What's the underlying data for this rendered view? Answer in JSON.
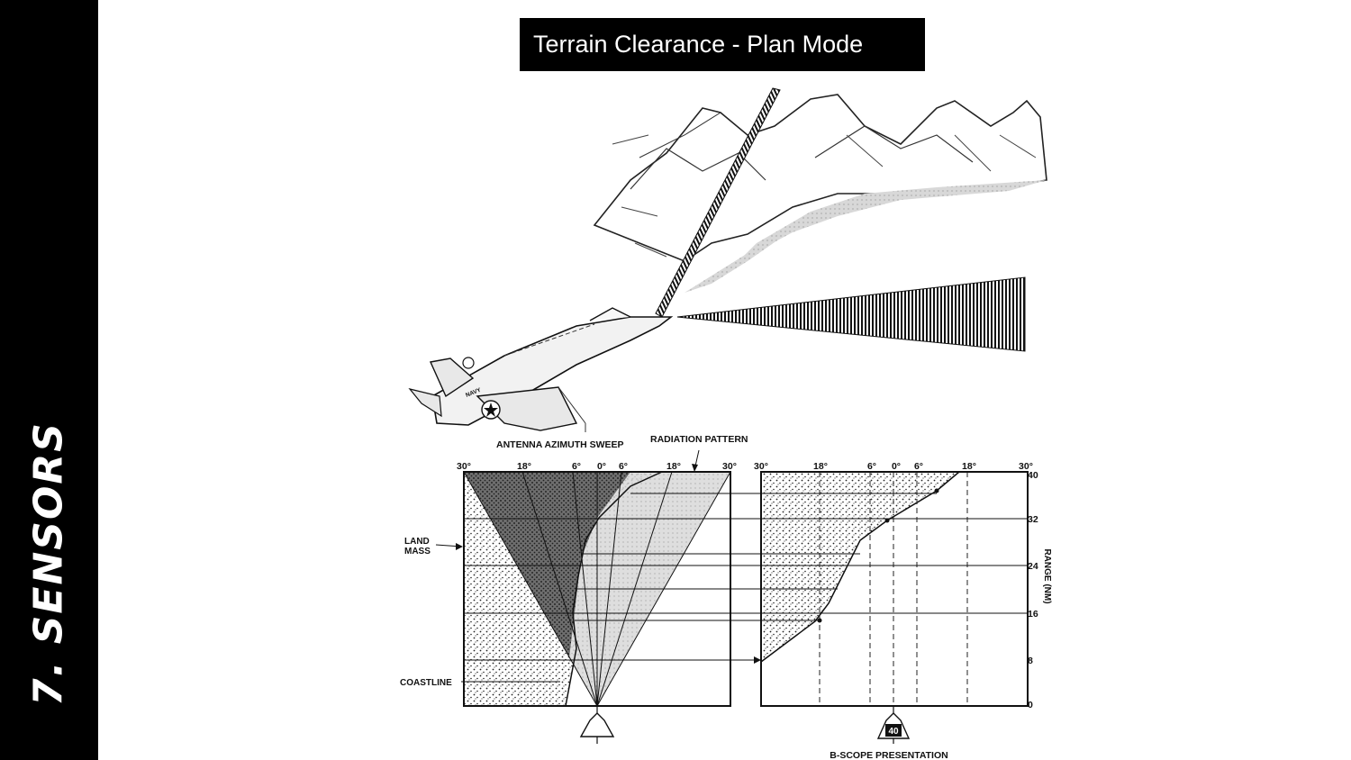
{
  "sidebar": {
    "label": "7. Sensors"
  },
  "title": "Terrain Clearance - Plan Mode",
  "aircraft": {
    "marking": "NAVY"
  },
  "labels": {
    "antenna_azimuth_sweep": "ANTENNA AZIMUTH SWEEP",
    "radiation_pattern": "RADIATION PATTERN",
    "land_mass_line1": "LAND",
    "land_mass_line2": "MASS",
    "coastline": "COASTLINE",
    "range_axis": "RANGE (NM)",
    "bscope": "B-SCOPE PRESENTATION",
    "scope_marker": "40"
  },
  "left_scope": {
    "angle_ticks": [
      "30°",
      "18°",
      "6°",
      "0°",
      "6°",
      "18°",
      "30°"
    ]
  },
  "right_scope": {
    "angle_ticks": [
      "30°",
      "18°",
      "6°",
      "0°",
      "6°",
      "18°",
      "30°"
    ],
    "range_ticks": [
      "0",
      "8",
      "16",
      "24",
      "32",
      "40"
    ]
  }
}
